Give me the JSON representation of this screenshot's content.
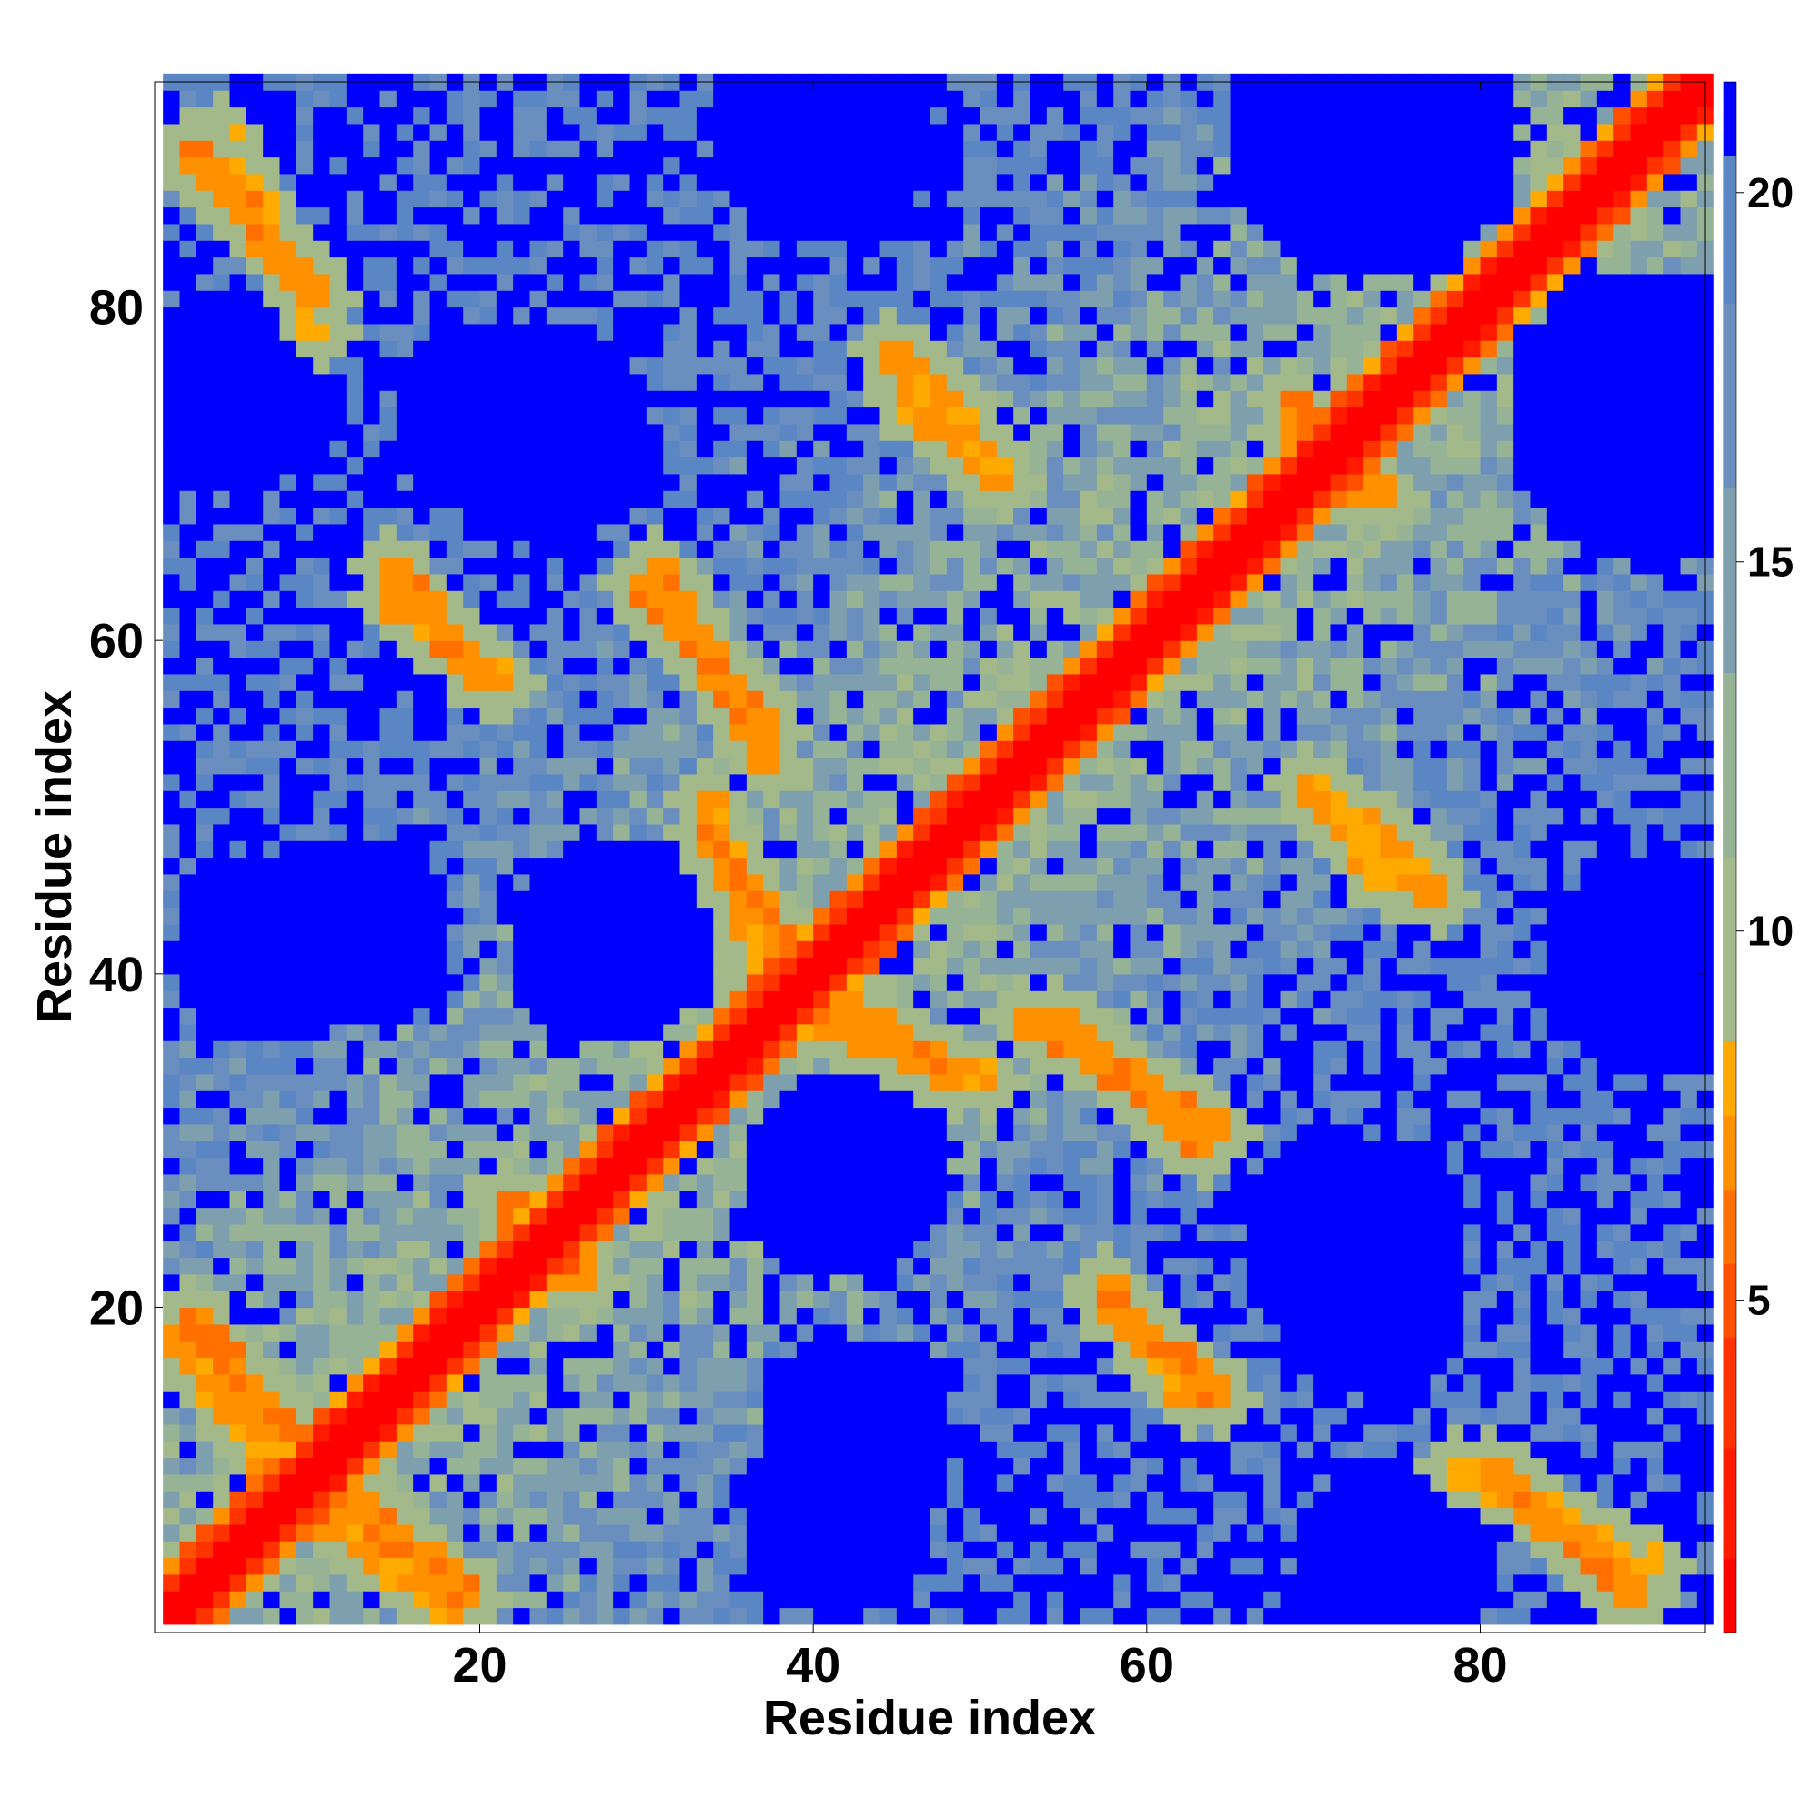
{
  "chart_data": {
    "type": "heatmap",
    "title": "",
    "xlabel": "Residue index",
    "ylabel": "Residue index",
    "n_residues": 93,
    "xlim": [
      1,
      93
    ],
    "ylim": [
      1,
      93
    ],
    "x_ticks": [
      20,
      40,
      60,
      80
    ],
    "y_ticks": [
      20,
      40,
      60,
      80
    ],
    "colorbar": {
      "ticks": [
        5,
        10,
        15,
        20
      ],
      "range": [
        0.5,
        21.5
      ],
      "levels": [
        {
          "lo": 0.5,
          "hi": 1.5,
          "color": "#ff0000"
        },
        {
          "lo": 1.5,
          "hi": 3.0,
          "color": "#ff1a00"
        },
        {
          "lo": 3.0,
          "hi": 4.5,
          "color": "#ff3300"
        },
        {
          "lo": 4.5,
          "hi": 5.5,
          "color": "#ff5000"
        },
        {
          "lo": 5.5,
          "hi": 6.5,
          "color": "#ff7000"
        },
        {
          "lo": 6.5,
          "hi": 7.5,
          "color": "#ff9000"
        },
        {
          "lo": 7.5,
          "hi": 8.5,
          "color": "#ffaa00"
        },
        {
          "lo": 8.5,
          "hi": 11.0,
          "color": "#a3b98a"
        },
        {
          "lo": 11.0,
          "hi": 13.5,
          "color": "#96b495"
        },
        {
          "lo": 13.5,
          "hi": 16.0,
          "color": "#7e9fae"
        },
        {
          "lo": 16.0,
          "hi": 18.5,
          "color": "#6a8fbe"
        },
        {
          "lo": 18.5,
          "hi": 20.5,
          "color": "#5b86c4"
        },
        {
          "lo": 20.5,
          "hi": 21.5,
          "color": "#0000ff"
        }
      ]
    },
    "contact_bands": [
      {
        "from": [
          4,
          90
        ],
        "to": [
          10,
          78
        ],
        "min": 7.5
      },
      {
        "from": [
          14,
          62
        ],
        "to": [
          21,
          57
        ],
        "min": 6.5
      },
      {
        "from": [
          30,
          64
        ],
        "to": [
          37,
          52
        ],
        "min": 6.0
      },
      {
        "from": [
          33,
          48
        ],
        "to": [
          38,
          41
        ],
        "min": 6.0
      },
      {
        "from": [
          45,
          74
        ],
        "to": [
          51,
          69
        ],
        "min": 6.5
      },
      {
        "from": [
          39,
          37
        ],
        "to": [
          50,
          33
        ],
        "min": 6.5
      },
      {
        "from": [
          54,
          37
        ],
        "to": [
          63,
          29
        ],
        "min": 6.0
      },
      {
        "from": [
          72,
          49
        ],
        "to": [
          77,
          44
        ],
        "min": 6.5
      },
      {
        "from": [
          57,
          20
        ],
        "to": [
          64,
          14
        ],
        "min": 6.0
      },
      {
        "from": [
          80,
          10
        ],
        "to": [
          89,
          2
        ],
        "min": 6.0
      },
      {
        "from": [
          2,
          19
        ],
        "to": [
          8,
          12
        ],
        "min": 6.0
      },
      {
        "from": [
          9,
          8
        ],
        "to": [
          18,
          1
        ],
        "min": 6.5
      },
      {
        "from": [
          86,
          86
        ],
        "to": [
          90,
          90
        ],
        "min": 6.5
      },
      {
        "from": [
          68,
          72
        ],
        "to": [
          74,
          68
        ],
        "min": 6.0
      },
      {
        "from": [
          22,
          25
        ],
        "to": [
          26,
          21
        ],
        "min": 6.0
      }
    ],
    "far_regions": [
      {
        "center": [
          40,
          90
        ],
        "radius": 7
      },
      {
        "center": [
          73,
          90
        ],
        "radius": 9
      },
      {
        "center": [
          5,
          75
        ],
        "radius": 6
      },
      {
        "center": [
          91,
          74
        ],
        "radius": 7
      },
      {
        "center": [
          20,
          73
        ],
        "radius": 6
      },
      {
        "center": [
          28,
          42
        ],
        "radius": 6
      },
      {
        "center": [
          7,
          41
        ],
        "radius": 6
      },
      {
        "center": [
          90,
          40
        ],
        "radius": 6
      },
      {
        "center": [
          41,
          27
        ],
        "radius": 6
      },
      {
        "center": [
          72,
          23
        ],
        "radius": 7
      },
      {
        "center": [
          42,
          12
        ],
        "radius": 6
      },
      {
        "center": [
          73,
          2
        ],
        "radius": 5
      }
    ]
  }
}
